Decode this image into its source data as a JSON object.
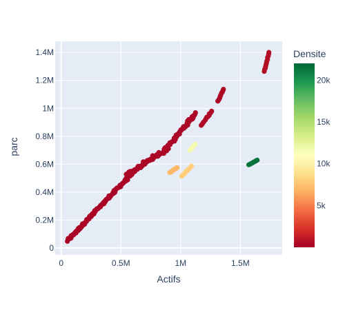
{
  "chart_data": {
    "type": "scatter",
    "xlabel": "Actifs",
    "ylabel": "parc",
    "xlim": [
      -50000,
      1850000
    ],
    "ylim": [
      -50000,
      1480000
    ],
    "x_ticks": [
      {
        "value": 0,
        "label": "0"
      },
      {
        "value": 500000,
        "label": "0.5M"
      },
      {
        "value": 1000000,
        "label": "1M"
      },
      {
        "value": 1500000,
        "label": "1.5M"
      }
    ],
    "y_ticks": [
      {
        "value": 0,
        "label": "0"
      },
      {
        "value": 200000,
        "label": "0.2M"
      },
      {
        "value": 400000,
        "label": "0.4M"
      },
      {
        "value": 600000,
        "label": "0.6M"
      },
      {
        "value": 800000,
        "label": "0.8M"
      },
      {
        "value": 1000000,
        "label": "1M"
      },
      {
        "value": 1200000,
        "label": "1.2M"
      },
      {
        "value": 1400000,
        "label": "1.4M"
      }
    ],
    "grid": true,
    "colorbar": {
      "title": "Densite",
      "min": 0,
      "max": 22000,
      "ticks": [
        {
          "value": 5000,
          "label": "5k"
        },
        {
          "value": 10000,
          "label": "10k"
        },
        {
          "value": 15000,
          "label": "15k"
        },
        {
          "value": 20000,
          "label": "20k"
        }
      ],
      "colorscale": [
        "#a50026",
        "#d73027",
        "#f46d43",
        "#fdae61",
        "#fee08b",
        "#ffffbf",
        "#d9ef8b",
        "#a6d96a",
        "#66bd63",
        "#1a9850",
        "#006837"
      ]
    },
    "segments": [
      {
        "x0": 50000,
        "y0": 50000,
        "x1": 600000,
        "y1": 540000,
        "densite": 200,
        "n": 120,
        "jitter": 15000
      },
      {
        "x0": 550000,
        "y0": 520000,
        "x1": 900000,
        "y1": 720000,
        "densite": 300,
        "n": 60,
        "jitter": 25000
      },
      {
        "x0": 850000,
        "y0": 680000,
        "x1": 1120000,
        "y1": 960000,
        "densite": 300,
        "n": 55,
        "jitter": 20000
      },
      {
        "x0": 1170000,
        "y0": 880000,
        "x1": 1260000,
        "y1": 980000,
        "densite": 500,
        "n": 12,
        "jitter": 8000
      },
      {
        "x0": 1310000,
        "y0": 1050000,
        "x1": 1360000,
        "y1": 1135000,
        "densite": 400,
        "n": 10,
        "jitter": 5000
      },
      {
        "x0": 1700000,
        "y0": 1265000,
        "x1": 1740000,
        "y1": 1400000,
        "densite": 600,
        "n": 12,
        "jitter": 4000
      },
      {
        "x0": 910000,
        "y0": 540000,
        "x1": 970000,
        "y1": 575000,
        "densite": 7000,
        "n": 10,
        "jitter": 4000
      },
      {
        "x0": 1010000,
        "y0": 515000,
        "x1": 1090000,
        "y1": 585000,
        "densite": 8000,
        "n": 12,
        "jitter": 4000
      },
      {
        "x0": 1080000,
        "y0": 700000,
        "x1": 1120000,
        "y1": 745000,
        "densite": 11500,
        "n": 8,
        "jitter": 3000
      },
      {
        "x0": 1570000,
        "y0": 595000,
        "x1": 1640000,
        "y1": 628000,
        "densite": 21500,
        "n": 10,
        "jitter": 2000
      }
    ]
  }
}
